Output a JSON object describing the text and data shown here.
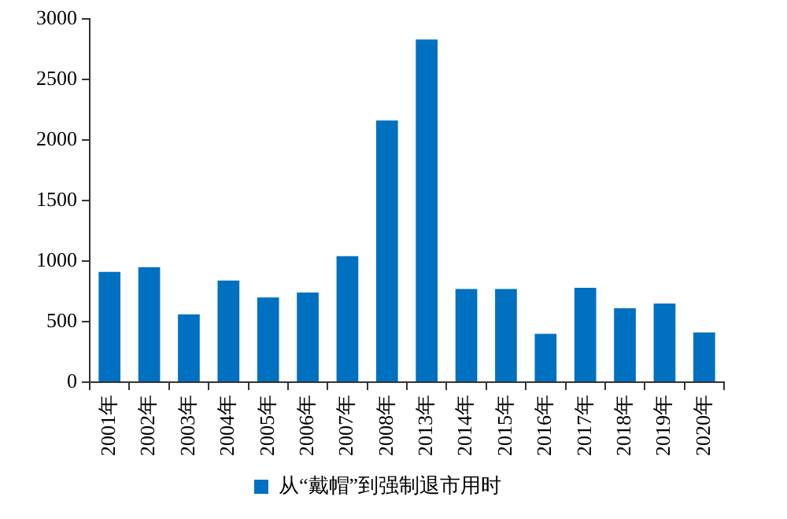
{
  "chart_data": {
    "type": "bar",
    "categories": [
      "2001年",
      "2002年",
      "2003年",
      "2004年",
      "2005年",
      "2006年",
      "2007年",
      "2008年",
      "2013年",
      "2014年",
      "2015年",
      "2016年",
      "2017年",
      "2018年",
      "2019年",
      "2020年"
    ],
    "series": [
      {
        "name": "从“戴帽”到强制退市用时",
        "color": "#0070c0",
        "values": [
          910,
          950,
          560,
          840,
          700,
          740,
          1040,
          2160,
          2830,
          770,
          770,
          400,
          780,
          610,
          650,
          410
        ]
      }
    ],
    "ylim": [
      0,
      3000
    ],
    "yticks": [
      0,
      500,
      1000,
      1500,
      2000,
      2500,
      3000
    ],
    "grid": false,
    "legend": "bottom"
  }
}
